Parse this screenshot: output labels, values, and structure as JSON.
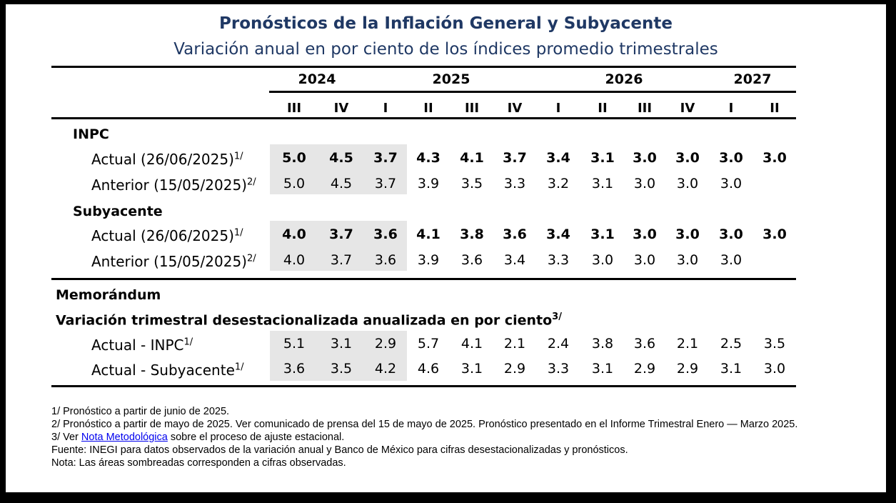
{
  "title": "Pronósticos de la Inflación General y Subyacente",
  "subtitle": "Variación anual en por ciento de los índices promedio trimestrales",
  "years": [
    "2024",
    "2025",
    "2026",
    "2027"
  ],
  "quarters": [
    "III",
    "IV",
    "I",
    "II",
    "III",
    "IV",
    "I",
    "II",
    "III",
    "IV",
    "I",
    "II"
  ],
  "sections": {
    "inpc": "INPC",
    "subyacente": "Subyacente",
    "memorandum": "Memorándum",
    "variacion": "Variación trimestral desestacionalizada anualizada en por ciento",
    "variacion_sup": "3/"
  },
  "rows": [
    {
      "label": "Actual (26/06/2025)",
      "sup": "1/",
      "bold": true,
      "values": [
        "5.0",
        "4.5",
        "3.7",
        "4.3",
        "4.1",
        "3.7",
        "3.4",
        "3.1",
        "3.0",
        "3.0",
        "3.0",
        "3.0"
      ]
    },
    {
      "label": "Anterior (15/05/2025)",
      "sup": "2/",
      "bold": false,
      "values": [
        "5.0",
        "4.5",
        "3.7",
        "3.9",
        "3.5",
        "3.3",
        "3.2",
        "3.1",
        "3.0",
        "3.0",
        "3.0",
        ""
      ]
    },
    {
      "label": "Actual (26/06/2025)",
      "sup": "1/",
      "bold": true,
      "values": [
        "4.0",
        "3.7",
        "3.6",
        "4.1",
        "3.8",
        "3.6",
        "3.4",
        "3.1",
        "3.0",
        "3.0",
        "3.0",
        "3.0"
      ]
    },
    {
      "label": "Anterior (15/05/2025)",
      "sup": "2/",
      "bold": false,
      "values": [
        "4.0",
        "3.7",
        "3.6",
        "3.9",
        "3.6",
        "3.4",
        "3.3",
        "3.0",
        "3.0",
        "3.0",
        "3.0",
        ""
      ]
    },
    {
      "label": "Actual - INPC",
      "sup": "1/",
      "bold": false,
      "values": [
        "5.1",
        "3.1",
        "2.9",
        "5.7",
        "4.1",
        "2.1",
        "2.4",
        "3.8",
        "3.6",
        "2.1",
        "2.5",
        "3.5"
      ]
    },
    {
      "label": "Actual - Subyacente",
      "sup": "1/",
      "bold": false,
      "values": [
        "3.6",
        "3.5",
        "4.2",
        "4.6",
        "3.1",
        "2.9",
        "3.3",
        "3.1",
        "2.9",
        "2.9",
        "3.1",
        "3.0"
      ]
    }
  ],
  "notes": {
    "n1": "1/ Pronóstico a partir de junio de 2025.",
    "n2": "2/ Pronóstico a partir de mayo de 2025. Ver comunicado de prensa del 15 de mayo de 2025. Pronóstico presentado en el Informe Trimestral Enero — Marzo 2025.",
    "n3_prefix": "3/ Ver ",
    "n3_link": "Nota Metodológica",
    "n3_suffix": " sobre el proceso de ajuste estacional.",
    "fuente": "Fuente: INEGI para datos observados de la variación anual y Banco de México para cifras desestacionalizadas y pronósticos.",
    "nota": "Nota: Las áreas sombreadas corresponden a cifras observadas."
  }
}
